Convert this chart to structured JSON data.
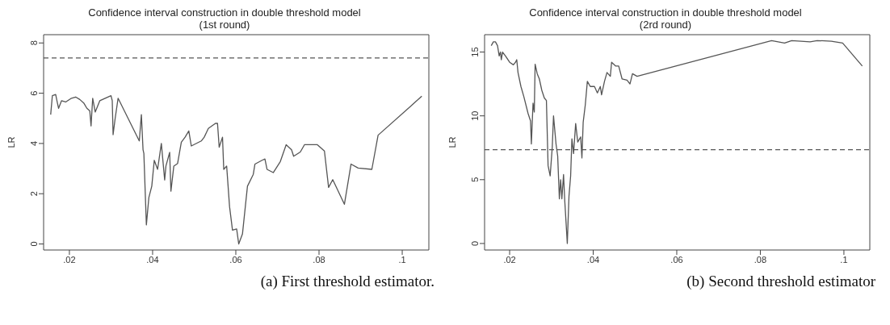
{
  "chart_data": [
    {
      "type": "line",
      "title": "Confidence interval construction in double threshold model",
      "subtitle": "(1st round)",
      "ylabel": "LR",
      "annotations": [
        "(a)  First  threshold  estimator."
      ],
      "xlim": [
        0.0138,
        0.1064
      ],
      "ylim": [
        -0.24,
        8.33
      ],
      "xticks": [
        {
          "value": 0.02,
          "label": ".02"
        },
        {
          "value": 0.04,
          "label": ".04"
        },
        {
          "value": 0.06,
          "label": ".06"
        },
        {
          "value": 0.08,
          "label": ".08"
        },
        {
          "value": 0.1,
          "label": ".1"
        }
      ],
      "yticks": [
        0,
        2,
        4,
        6,
        8
      ],
      "marker": "none",
      "line_style": "solid",
      "ref_lines": [
        {
          "axis": "y",
          "value": 7.4,
          "color": "#555555",
          "line_style": "dashed"
        }
      ],
      "series": [
        {
          "color": "#555555",
          "x": [
            0.0155,
            0.0159,
            0.0167,
            0.017,
            0.0174,
            0.0181,
            0.0191,
            0.0205,
            0.0215,
            0.0225,
            0.0235,
            0.0242,
            0.0249,
            0.0252,
            0.0256,
            0.0262,
            0.0273,
            0.0286,
            0.03,
            0.0303,
            0.0305,
            0.031,
            0.0317,
            0.0368,
            0.0373,
            0.0377,
            0.0379,
            0.0385,
            0.0391,
            0.0398,
            0.0404,
            0.0412,
            0.0421,
            0.0429,
            0.0432,
            0.0441,
            0.0444,
            0.0451,
            0.046,
            0.0469,
            0.0478,
            0.0487,
            0.0493,
            0.0517,
            0.0524,
            0.0534,
            0.0551,
            0.0556,
            0.056,
            0.0568,
            0.0571,
            0.0578,
            0.0585,
            0.0592,
            0.0602,
            0.0607,
            0.0616,
            0.0628,
            0.0642,
            0.0646,
            0.0663,
            0.067,
            0.0675,
            0.069,
            0.0707,
            0.0721,
            0.0734,
            0.0739,
            0.0755,
            0.0765,
            0.0796,
            0.0813,
            0.0823,
            0.0833,
            0.0861,
            0.0877,
            0.0894,
            0.0927,
            0.0942,
            0.1047
          ],
          "values": [
            5.15,
            5.9,
            5.95,
            5.7,
            5.4,
            5.7,
            5.65,
            5.8,
            5.85,
            5.75,
            5.6,
            5.4,
            5.3,
            4.7,
            5.8,
            5.25,
            5.7,
            5.8,
            5.9,
            5.7,
            4.35,
            5.0,
            5.8,
            4.1,
            5.15,
            3.75,
            3.6,
            0.76,
            1.85,
            2.3,
            3.33,
            2.97,
            4.0,
            2.55,
            3.1,
            3.65,
            2.1,
            3.1,
            3.2,
            4.05,
            4.25,
            4.5,
            3.9,
            4.1,
            4.25,
            4.6,
            4.8,
            4.8,
            3.85,
            4.25,
            2.97,
            3.1,
            1.48,
            0.55,
            0.6,
            0.0,
            0.4,
            2.3,
            2.77,
            3.18,
            3.33,
            3.38,
            2.97,
            2.84,
            3.28,
            3.95,
            3.75,
            3.49,
            3.66,
            3.95,
            3.95,
            3.7,
            2.25,
            2.56,
            1.58,
            3.18,
            3.02,
            2.97,
            4.33,
            5.88
          ]
        }
      ]
    },
    {
      "type": "line",
      "title": "Confidence interval construction in double threshold model",
      "subtitle": "(2rd round)",
      "ylabel": "LR",
      "annotations": [
        "(b)  Second  threshold  estimator"
      ],
      "xlim": [
        0.014,
        0.1062
      ],
      "ylim": [
        -0.51,
        16.36
      ],
      "xticks": [
        {
          "value": 0.02,
          "label": ".02"
        },
        {
          "value": 0.04,
          "label": ".04"
        },
        {
          "value": 0.06,
          "label": ".06"
        },
        {
          "value": 0.08,
          "label": ".08"
        },
        {
          "value": 0.1,
          "label": ".1"
        }
      ],
      "yticks": [
        0,
        5,
        10,
        15
      ],
      "marker": "none",
      "line_style": "solid",
      "ref_lines": [
        {
          "axis": "y",
          "value": 7.35,
          "color": "#555555",
          "line_style": "dashed"
        }
      ],
      "series": [
        {
          "color": "#555555",
          "x": [
            0.0156,
            0.0161,
            0.0166,
            0.0171,
            0.0175,
            0.0178,
            0.018,
            0.0183,
            0.019,
            0.02,
            0.0209,
            0.0214,
            0.0217,
            0.022,
            0.0227,
            0.0234,
            0.0244,
            0.025,
            0.0252,
            0.0256,
            0.0259,
            0.0261,
            0.0266,
            0.0271,
            0.0277,
            0.0283,
            0.0288,
            0.0292,
            0.0297,
            0.0302,
            0.0305,
            0.0311,
            0.0315,
            0.0319,
            0.0322,
            0.0325,
            0.0329,
            0.0332,
            0.0338,
            0.0342,
            0.0346,
            0.0349,
            0.0353,
            0.0358,
            0.0363,
            0.037,
            0.0373,
            0.0376,
            0.0381,
            0.0386,
            0.0393,
            0.0403,
            0.041,
            0.0417,
            0.042,
            0.0427,
            0.0433,
            0.0441,
            0.0444,
            0.0454,
            0.0461,
            0.0469,
            0.0481,
            0.0488,
            0.0494,
            0.0505,
            0.0827,
            0.0858,
            0.0875,
            0.0919,
            0.0936,
            0.097,
            0.0997,
            0.1044
          ],
          "values": [
            15.5,
            15.8,
            15.8,
            15.5,
            14.7,
            15.0,
            14.4,
            15.0,
            14.7,
            14.2,
            14.0,
            14.2,
            14.4,
            13.4,
            12.3,
            11.5,
            10.2,
            9.6,
            7.8,
            11.0,
            10.3,
            14.05,
            13.3,
            12.9,
            12.0,
            11.4,
            11.2,
            6.1,
            5.3,
            7.55,
            10.0,
            7.8,
            6.85,
            3.5,
            5.0,
            3.5,
            5.4,
            3.3,
            0.0,
            3.7,
            5.3,
            8.2,
            7.05,
            9.4,
            7.95,
            8.35,
            6.7,
            9.5,
            10.85,
            12.7,
            12.3,
            12.3,
            11.8,
            12.3,
            11.65,
            12.7,
            13.4,
            13.1,
            14.2,
            13.9,
            13.9,
            12.9,
            12.8,
            12.5,
            13.3,
            13.1,
            15.9,
            15.7,
            15.9,
            15.8,
            15.9,
            15.85,
            15.7,
            13.9
          ]
        }
      ]
    }
  ]
}
